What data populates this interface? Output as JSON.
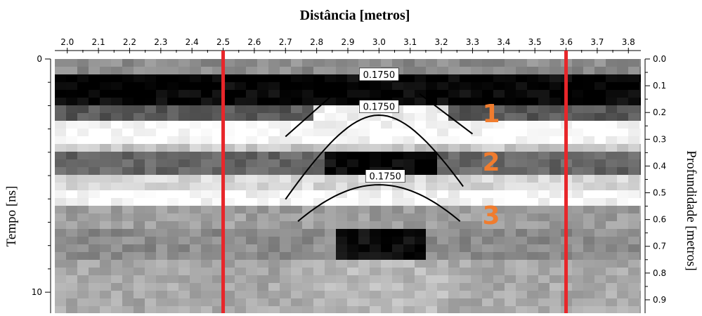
{
  "chart_data": {
    "type": "heatmap",
    "title": "Distância [metros]",
    "xlabel": "Distância [metros]",
    "ylabel_left": "Tempo [ns]",
    "ylabel_right": "Profundidade [metros]",
    "x_ticks": [
      "2.0",
      "2.1",
      "2.2",
      "2.3",
      "2.4",
      "2.5",
      "2.6",
      "2.7",
      "2.8",
      "2.9",
      "3.0",
      "3.1",
      "3.2",
      "3.3",
      "3.4",
      "3.5",
      "3.6",
      "3.7",
      "3.8"
    ],
    "x_range": [
      1.96,
      3.84
    ],
    "left_ticks": [
      "0",
      "10"
    ],
    "left_range": [
      0,
      10.9
    ],
    "right_ticks": [
      "0.0",
      "0.1",
      "0.2",
      "0.3",
      "0.4",
      "0.5",
      "0.6",
      "0.7",
      "0.8",
      "0.9"
    ],
    "right_range": [
      0,
      0.95
    ],
    "vertical_markers": [
      {
        "x": 2.5,
        "color": "#e8262a"
      },
      {
        "x": 3.6,
        "color": "#e8262a"
      }
    ],
    "hyperbolas": [
      {
        "apex_x": 3.0,
        "apex_depth": 0.21,
        "x_min": 2.7,
        "x_max": 3.27,
        "label": "0.1750"
      },
      {
        "apex_x": 3.0,
        "apex_depth": 0.47,
        "x_min": 2.74,
        "x_max": 3.26,
        "label": "0.1750"
      }
    ],
    "annotation_label_top": "0.1750",
    "reflections": [
      {
        "label": "1",
        "depth": 0.2
      },
      {
        "label": "2",
        "depth": 0.38
      },
      {
        "label": "3",
        "depth": 0.58
      }
    ],
    "colors": {
      "marker": "#e8262a",
      "label": "#f07c2e",
      "hyperbola": "#000000"
    },
    "colormap": "grayscale",
    "grid": false
  }
}
